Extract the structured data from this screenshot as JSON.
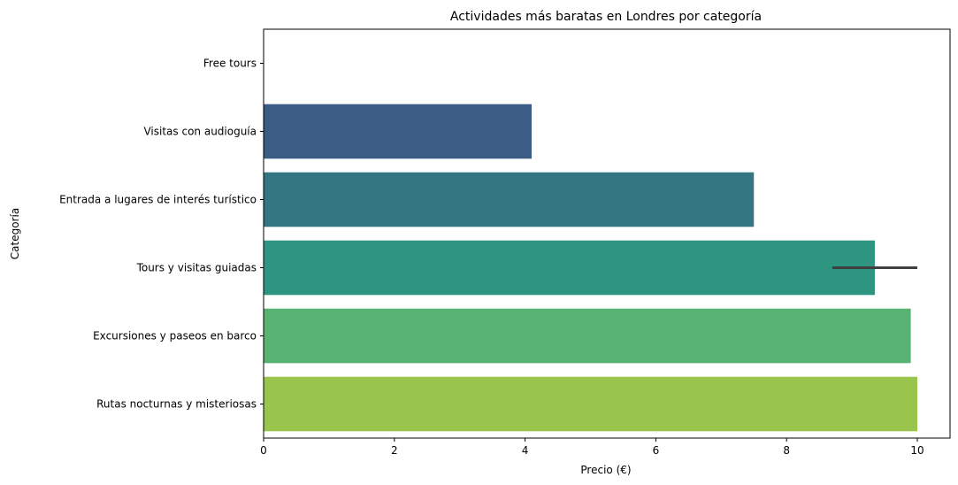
{
  "chart_data": {
    "type": "bar",
    "orientation": "horizontal",
    "title": "Actividades más baratas en Londres por categoría",
    "xlabel": "Precio (€)",
    "ylabel": "Categoría",
    "xlim": [
      0,
      10.3
    ],
    "xticks": [
      0,
      2,
      4,
      6,
      8,
      10
    ],
    "grid": false,
    "categories": [
      "Free tours",
      "Visitas con audioguía",
      "Entrada a lugares de interés turístico",
      "Tours y visitas guiadas",
      "Excursiones y paseos en barco",
      "Rutas nocturnas y misteriosas"
    ],
    "values": [
      0,
      4.1,
      7.5,
      9.35,
      9.9,
      10
    ],
    "error_bars": [
      null,
      null,
      null,
      [
        8.7,
        10
      ],
      null,
      null
    ],
    "colors": [
      "#472d7b",
      "#3b5c85",
      "#357683",
      "#2e9580",
      "#58b271",
      "#9ac54c"
    ]
  }
}
